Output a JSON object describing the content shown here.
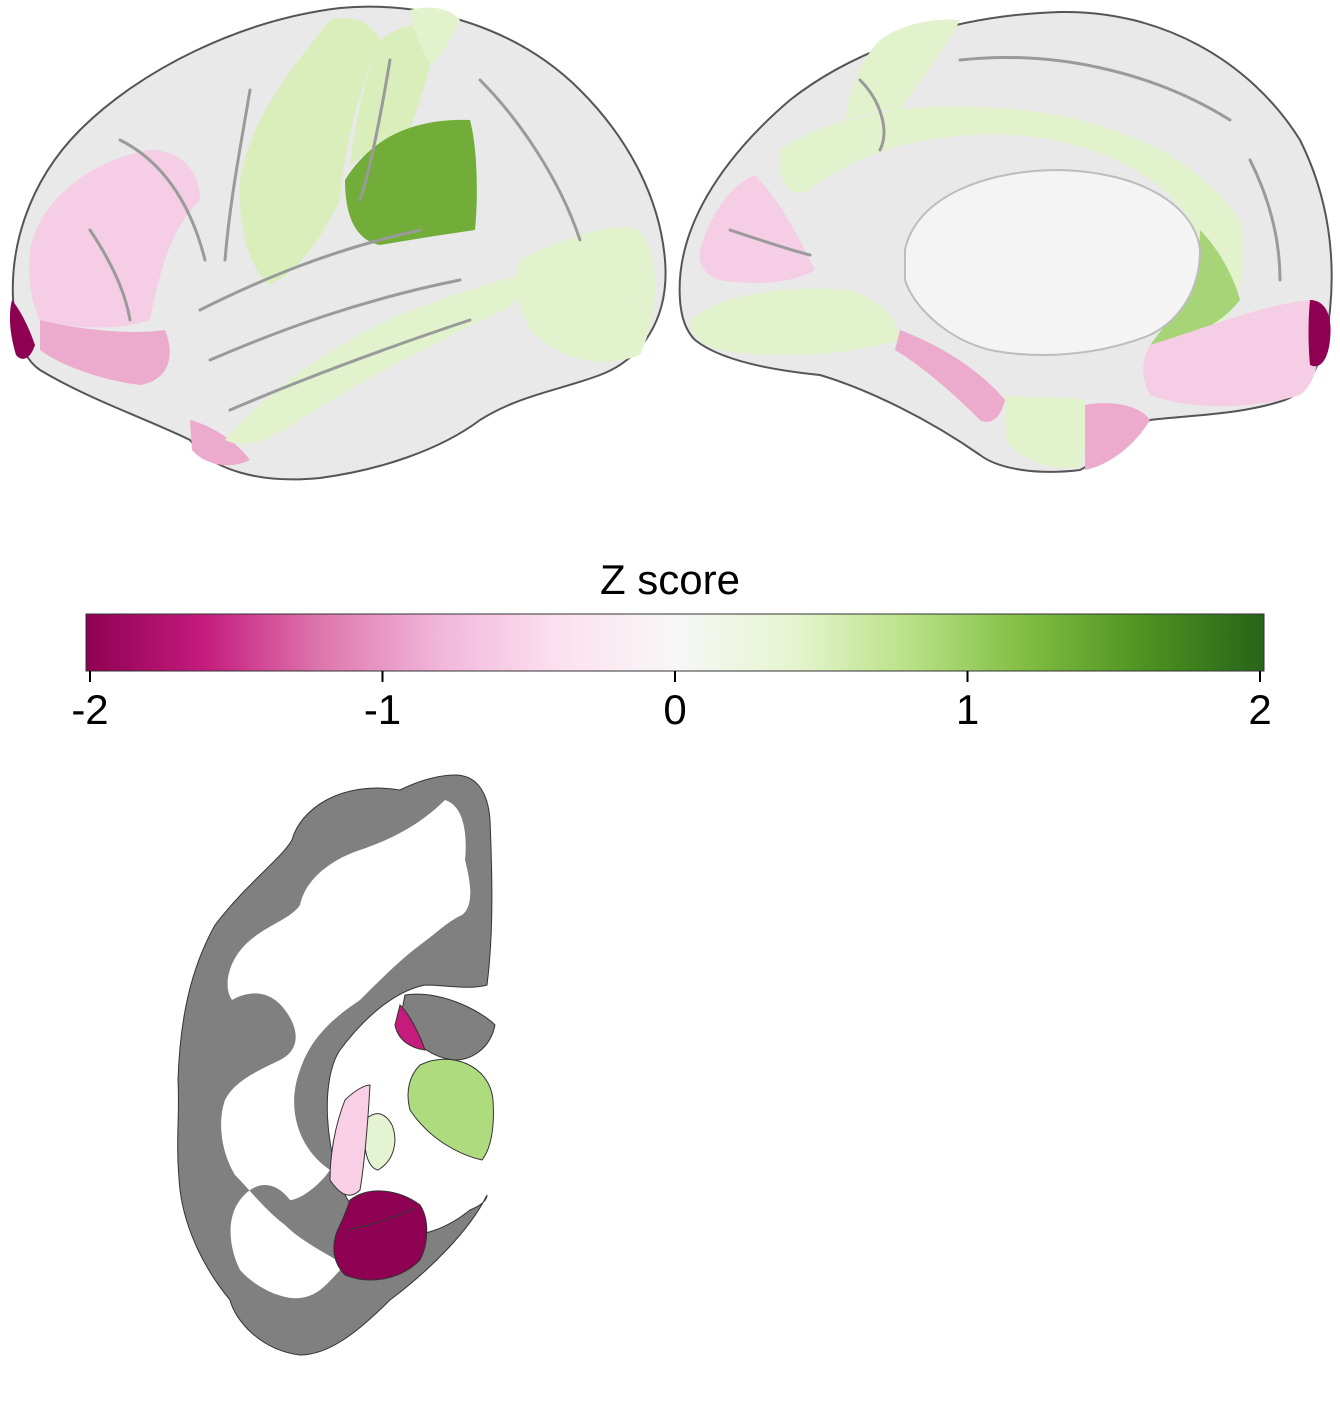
{
  "colorbar": {
    "title": "Z score",
    "min": -2,
    "max": 2,
    "ticks": [
      "-2",
      "-1",
      "0",
      "1",
      "2"
    ],
    "colors": [
      "#8e0152",
      "#c51b7d",
      "#de77ae",
      "#f1b6da",
      "#fde0ef",
      "#f7f7f7",
      "#e6f5d0",
      "#b8e186",
      "#7fbc41",
      "#4d9221",
      "#276419"
    ]
  },
  "figure": {
    "surface_gray": "#e9e9e9",
    "slice_gray": "#808080",
    "regions": {
      "frontal_pink": "#f5cde4",
      "pole_dark": "#8e0152",
      "temporal_pink": "#ecaacd",
      "precentral_green": "#d9eebb",
      "supramarginal_green": "#72ad3a",
      "light_green": "#e2f2cc",
      "medial_green": "#a8d478",
      "putamen_green": "#aedb7e",
      "pallidum_light": "#e4f3d2",
      "caudate_pink": "#f8cfe4",
      "amygdala_dark": "#8e0152",
      "accumbens_magenta": "#c51b7d"
    }
  }
}
